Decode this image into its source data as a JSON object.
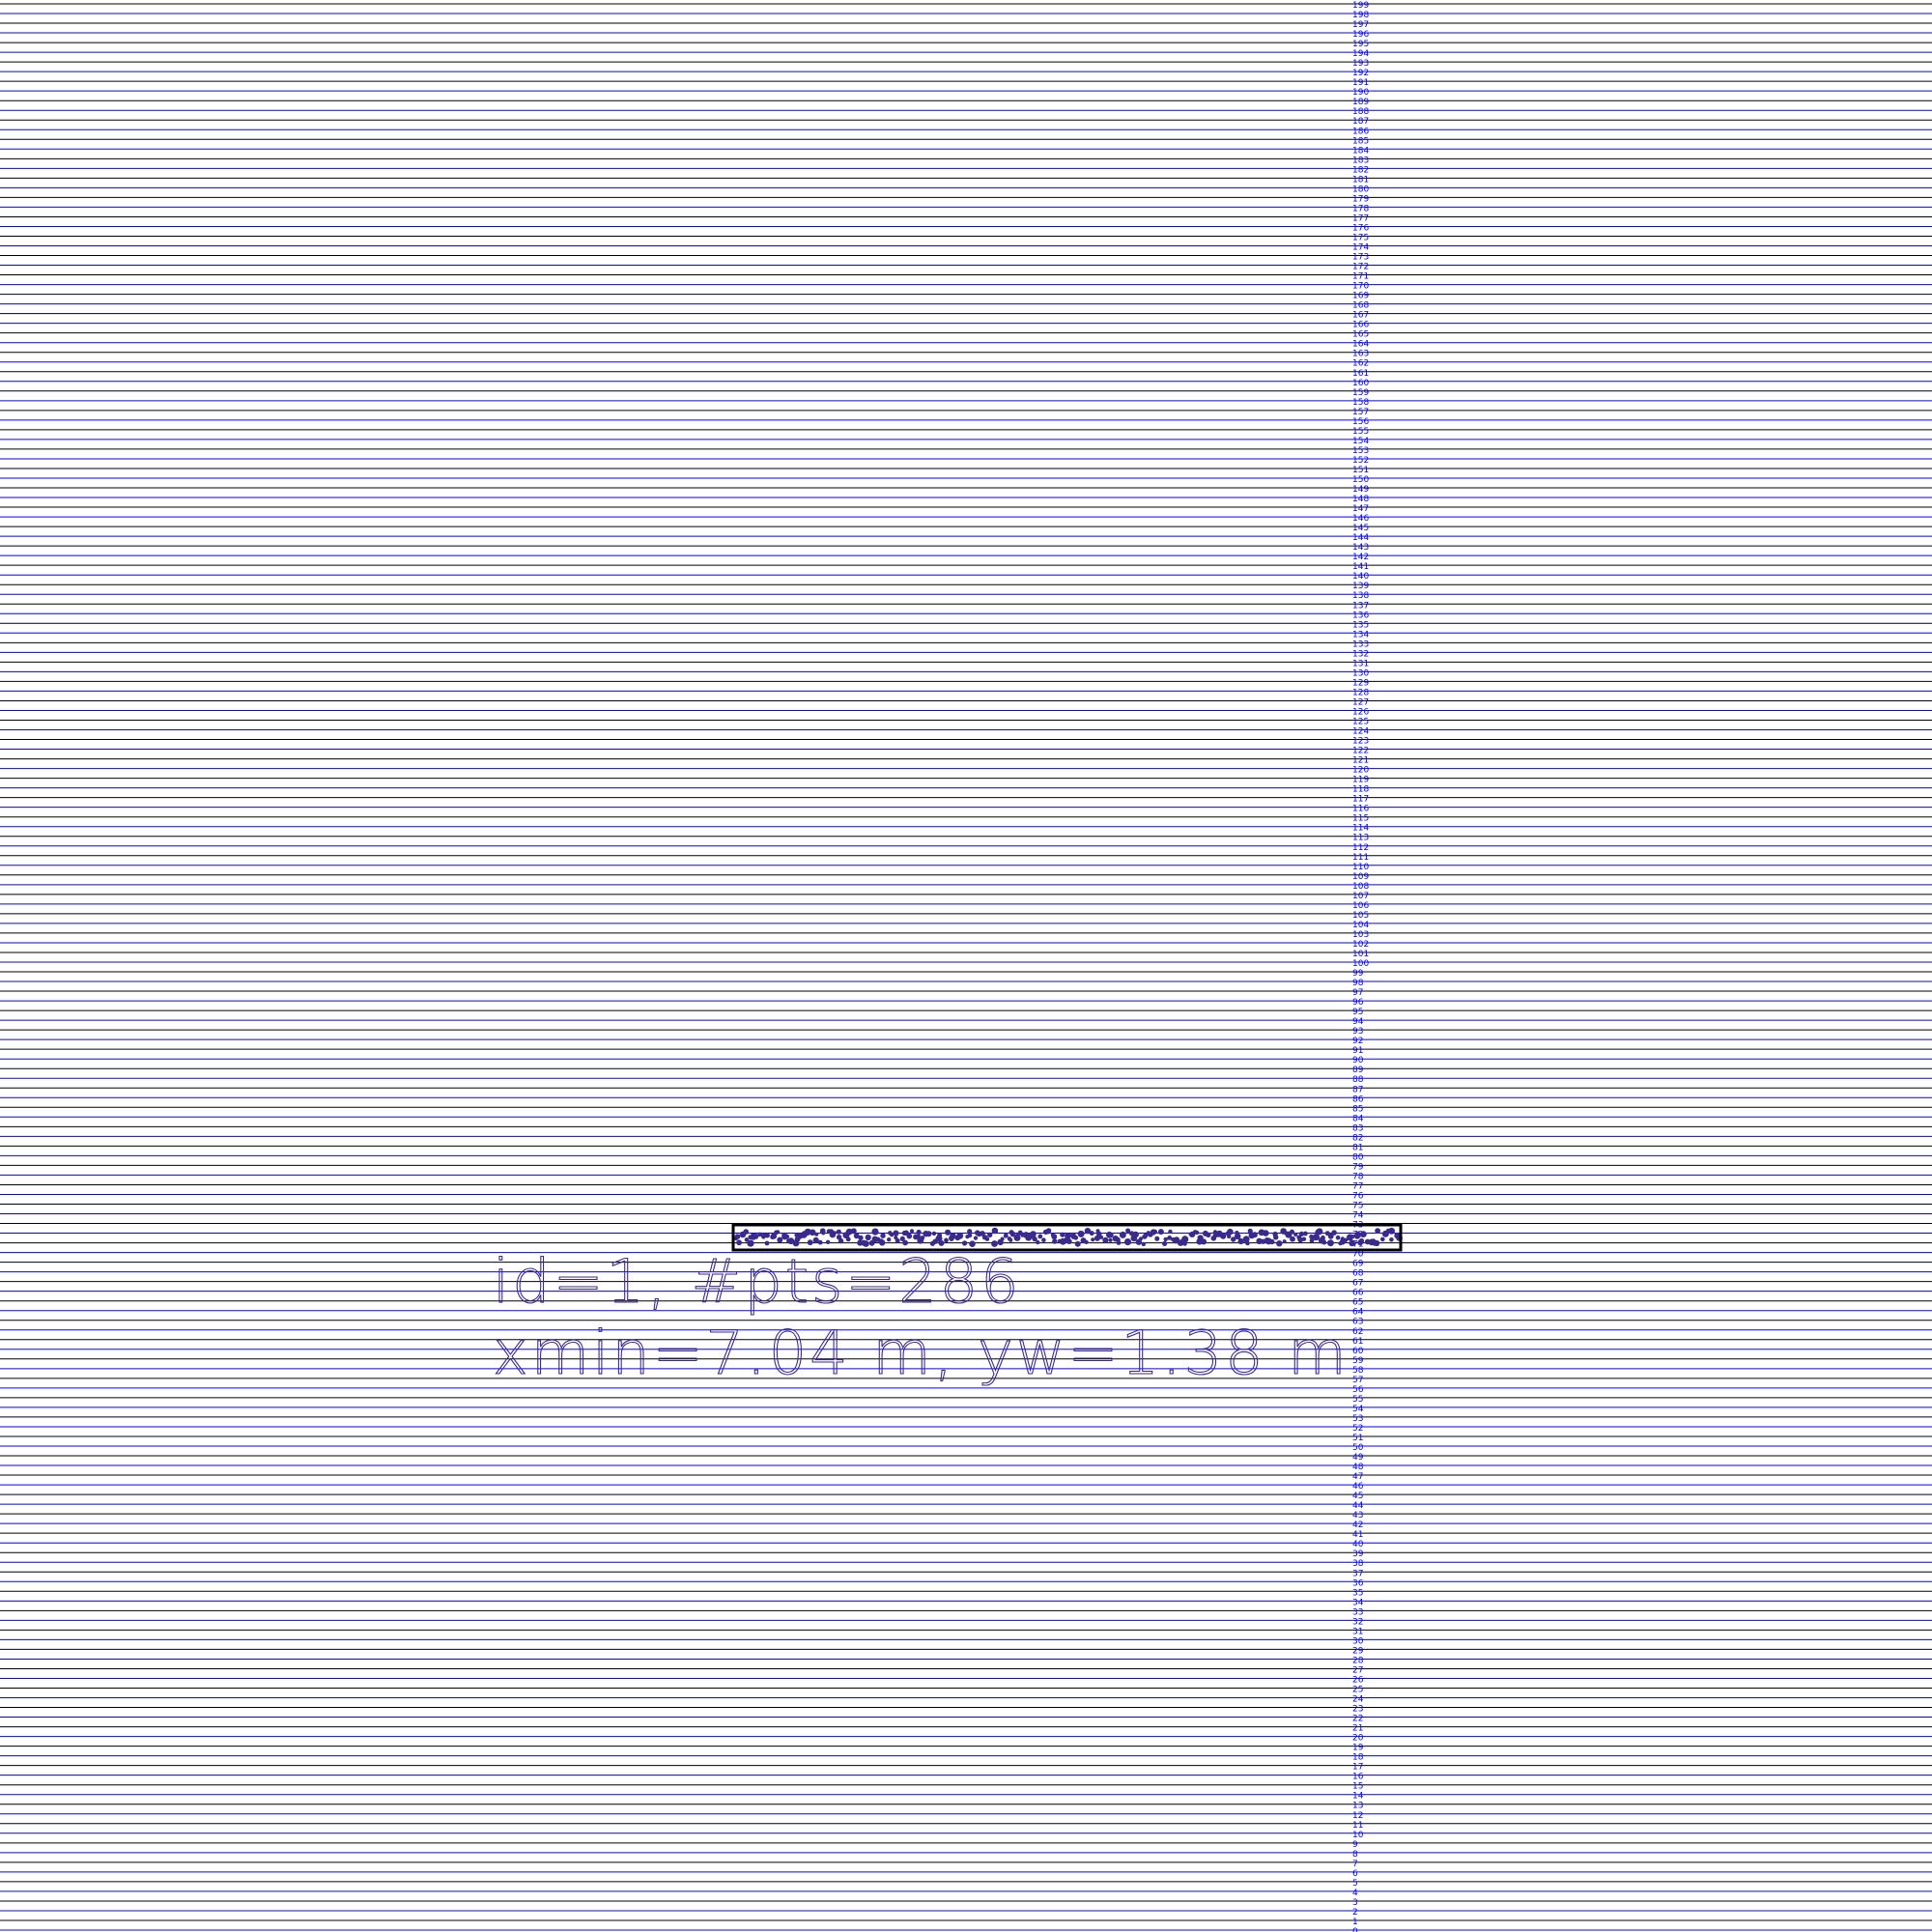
{
  "rows": {
    "first": 0,
    "last": 199,
    "colors": [
      "#000000",
      "#0000ff"
    ]
  },
  "segment": {
    "info_line": "id=1, #pts=286",
    "size_line": "xmin=7.04 m, yw=1.38 m",
    "border_color": "#000000",
    "point_color": "#3b2a8c",
    "text_color": "#3b2a8c",
    "point_count": 286
  }
}
